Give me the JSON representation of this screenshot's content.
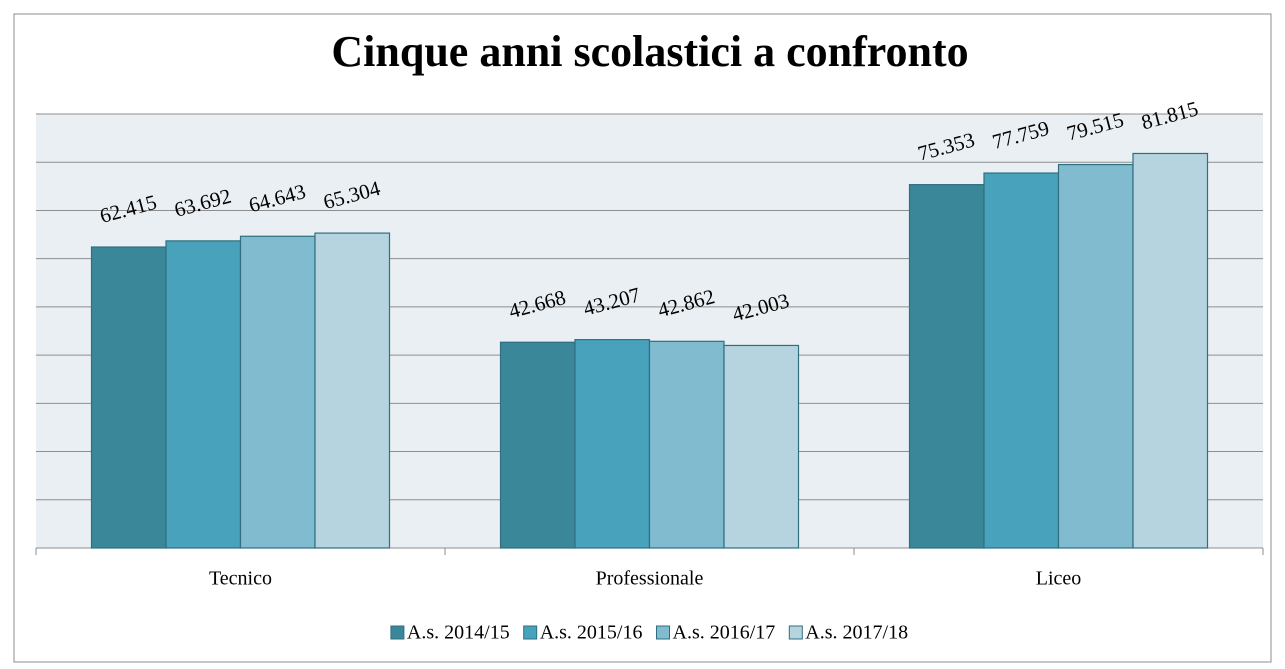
{
  "chart_data": {
    "type": "bar",
    "title": "Cinque anni scolastici a confronto",
    "categories": [
      "Tecnico",
      "Professionale",
      "Liceo"
    ],
    "series": [
      {
        "name": "A.s. 2014/15",
        "color": "#3b879a",
        "values": [
          62415,
          42668,
          75353
        ],
        "value_labels": [
          "62.415",
          "42.668",
          "75.353"
        ]
      },
      {
        "name": "A.s. 2015/16",
        "color": "#48a2bc",
        "values": [
          63692,
          43207,
          77759
        ],
        "value_labels": [
          "63.692",
          "43.207",
          "77.759"
        ]
      },
      {
        "name": "A.s. 2016/17",
        "color": "#80bbd0",
        "values": [
          64643,
          42862,
          79515
        ],
        "value_labels": [
          "64.643",
          "42.862",
          "79.515"
        ]
      },
      {
        "name": "A.s. 2017/18",
        "color": "#b6d4df",
        "values": [
          65304,
          42003,
          81815
        ],
        "value_labels": [
          "65.304",
          "42.003",
          "81.815"
        ]
      }
    ],
    "ylim": [
      0,
      90000
    ],
    "yticks": [
      0,
      10000,
      20000,
      30000,
      40000,
      50000,
      60000,
      70000,
      80000,
      90000
    ],
    "grid": true,
    "legend": "bottom"
  }
}
